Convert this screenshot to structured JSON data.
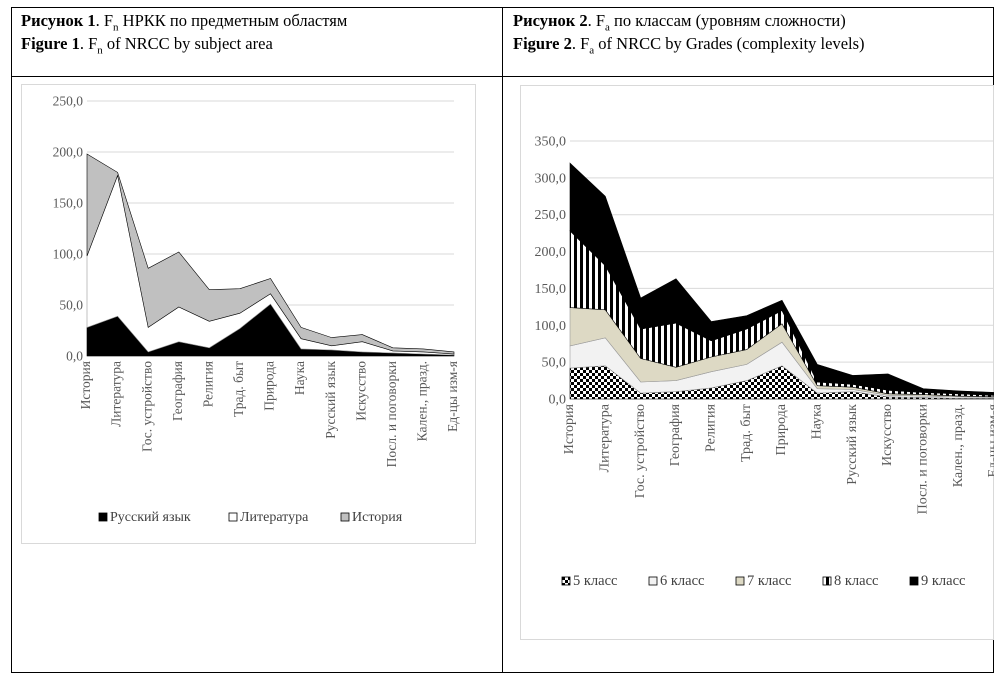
{
  "captions": {
    "fig1": {
      "ru_label": "Рисунок 1",
      "ru_rest": ". F",
      "ru_sub": "n",
      "ru_tail": " НРКК по предметным областям",
      "en_label": "Figure 1",
      "en_rest": ". F",
      "en_sub": "n",
      "en_tail": " of NRCC by subject area"
    },
    "fig2": {
      "ru_label": "Рисунок 2",
      "ru_rest": ". F",
      "ru_sub": "a",
      "ru_tail": " по классам (уровням сложности)",
      "en_label": "Figure 2",
      "en_rest": ". F",
      "en_sub": "a",
      "en_tail": " of NRCC by Grades (complexity levels)"
    }
  },
  "chart_data": [
    {
      "type": "area",
      "stacked": true,
      "categories": [
        "История",
        "Литература",
        "Гос. устройство",
        "География",
        "Религия",
        "Трад. быт",
        "Природа",
        "Наука",
        "Русский язык",
        "Искусство",
        "Посл. и поговорки",
        "Кален., празд.",
        "Ед-цы изм-я"
      ],
      "series": [
        {
          "name": "Русский язык",
          "color": "#000000",
          "values": [
            28,
            39,
            4,
            14,
            8,
            27,
            51,
            7,
            6,
            4,
            3,
            2,
            1
          ]
        },
        {
          "name": "Литература",
          "color": "#ffffff",
          "values": [
            70,
            138,
            24,
            34,
            26,
            15,
            10,
            10,
            4,
            10,
            2,
            2,
            1
          ]
        },
        {
          "name": "История",
          "color": "#c0c0c0",
          "values": [
            100,
            3,
            58,
            54,
            31,
            24,
            15,
            11,
            8,
            7,
            3,
            3,
            2
          ]
        }
      ],
      "yticks": [
        "0,0",
        "50,0",
        "100,0",
        "150,0",
        "200,0",
        "250,0"
      ],
      "ylim": [
        0,
        250
      ],
      "legend": "bottom",
      "grid": true
    },
    {
      "type": "area",
      "stacked": true,
      "categories": [
        "История",
        "Литература",
        "Гос. устройство",
        "География",
        "Религия",
        "Трад. быт",
        "Природа",
        "Наука",
        "Русский язык",
        "Искусство",
        "Посл. и поговорки",
        "Кален., празд.",
        "Ед-цы изм-я"
      ],
      "series": [
        {
          "name": "5 класс",
          "fill": "checker",
          "values": [
            42,
            45,
            8,
            10,
            15,
            25,
            45,
            8,
            10,
            3,
            2,
            1,
            1
          ]
        },
        {
          "name": "6 класс",
          "fill": "#f2f2f2",
          "values": [
            30,
            38,
            15,
            15,
            22,
            22,
            32,
            6,
            3,
            2,
            2,
            2,
            1
          ]
        },
        {
          "name": "7 класс",
          "fill": "#ddd9c4",
          "values": [
            52,
            38,
            32,
            18,
            20,
            20,
            25,
            4,
            3,
            2,
            2,
            1,
            1
          ]
        },
        {
          "name": "8 класс",
          "fill": "stripes",
          "values": [
            104,
            60,
            40,
            60,
            22,
            28,
            18,
            5,
            4,
            5,
            3,
            3,
            2
          ]
        },
        {
          "name": "9 класс",
          "fill": "#000000",
          "values": [
            92,
            94,
            42,
            60,
            26,
            18,
            14,
            24,
            12,
            22,
            5,
            4,
            4
          ]
        }
      ],
      "yticks": [
        "0,0",
        "50,0",
        "100,0",
        "150,0",
        "200,0",
        "250,0",
        "300,0",
        "350,0"
      ],
      "ylim": [
        0,
        350
      ],
      "legend": "bottom",
      "grid": true
    }
  ]
}
